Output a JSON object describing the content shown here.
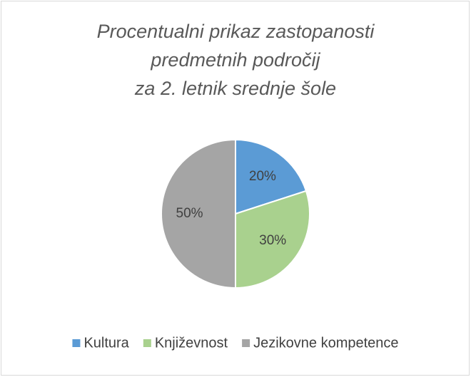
{
  "chart_data": {
    "type": "pie",
    "title": [
      "Procentualni prikaz zastopanosti",
      "predmetnih področij",
      "za 2. letnik srednje šole"
    ],
    "categories": [
      "Kultura",
      "Književnost",
      "Jezikovne kompetence"
    ],
    "values": [
      20,
      30,
      50
    ],
    "value_labels": [
      "20%",
      "30%",
      "50%"
    ],
    "colors": [
      "#5b9bd5",
      "#a9d18e",
      "#a5a5a5"
    ],
    "legend": "bottom"
  }
}
